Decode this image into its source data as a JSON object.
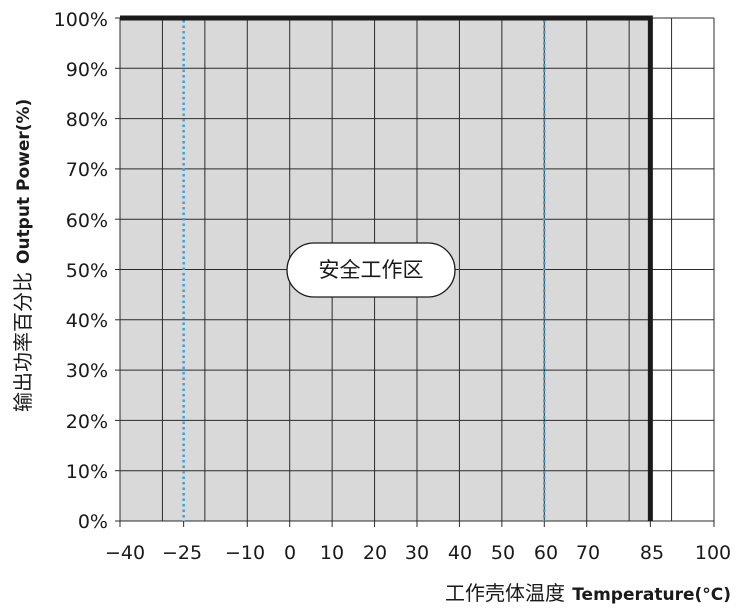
{
  "chart_data": {
    "type": "area",
    "title": "",
    "xlabel_cn": "工作壳体温度",
    "xlabel_en": "Temperature(°C)",
    "ylabel_cn": "输出功率百分比",
    "ylabel_en": "Output Power(%)",
    "xlim": [
      -40,
      100
    ],
    "ylim": [
      0,
      100
    ],
    "x_tick_values": [
      -40,
      -25,
      -10,
      0,
      10,
      20,
      30,
      40,
      50,
      60,
      70,
      85,
      100
    ],
    "x_tick_labels": [
      "−40",
      "−25",
      "−10",
      "0",
      "10",
      "20",
      "30",
      "40",
      "50",
      "60",
      "70",
      "85",
      "100"
    ],
    "y_tick_values": [
      0,
      10,
      20,
      30,
      40,
      50,
      60,
      70,
      80,
      90,
      100
    ],
    "y_tick_labels": [
      "0%",
      "10%",
      "20%",
      "30%",
      "40%",
      "50%",
      "60%",
      "70%",
      "80%",
      "90%",
      "100%"
    ],
    "grid": true,
    "safe_zone": {
      "label": "安全工作区",
      "x_from": -40,
      "x_to": 85,
      "y_from": 0,
      "y_to": 100,
      "color": "#d9d9d9"
    },
    "boundary": {
      "x": [
        -40,
        85,
        85
      ],
      "y": [
        100,
        100,
        0
      ],
      "color": "#1a1a1a"
    },
    "markers": [
      {
        "x": -25,
        "style": "dotted",
        "color": "#3aa3d9"
      },
      {
        "x": 60,
        "style": "dotted",
        "color": "#3aa3d9"
      }
    ]
  }
}
